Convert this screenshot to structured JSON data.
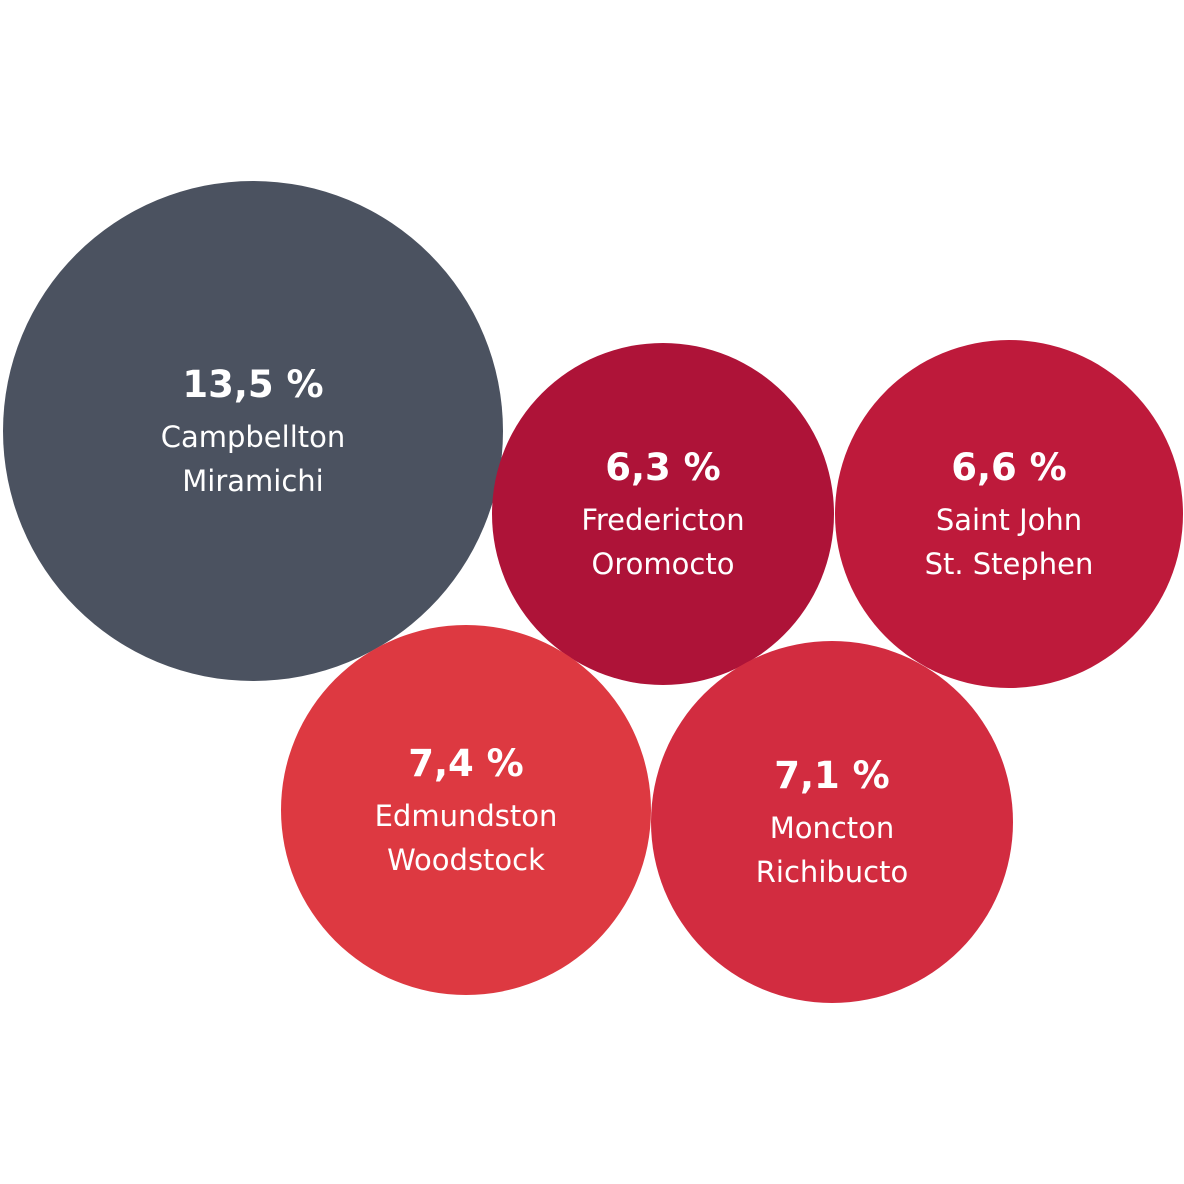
{
  "chart_data": {
    "type": "bubble",
    "series": [
      {
        "label_value": "13,5 %",
        "value": 13.5,
        "labels": [
          "Campbellton",
          "Miramichi"
        ],
        "color": "#4b5260"
      },
      {
        "label_value": "6,3 %",
        "value": 6.3,
        "labels": [
          "Fredericton",
          "Oromocto"
        ],
        "color": "#ae1338"
      },
      {
        "label_value": "6,6 %",
        "value": 6.6,
        "labels": [
          "Saint John",
          "St. Stephen"
        ],
        "color": "#be1a3b"
      },
      {
        "label_value": "7,4 %",
        "value": 7.4,
        "labels": [
          "Edmundston",
          "Woodstock"
        ],
        "color": "#dd3941"
      },
      {
        "label_value": "7,1 %",
        "value": 7.1,
        "labels": [
          "Moncton",
          "Richibucto"
        ],
        "color": "#d22c40"
      }
    ]
  }
}
